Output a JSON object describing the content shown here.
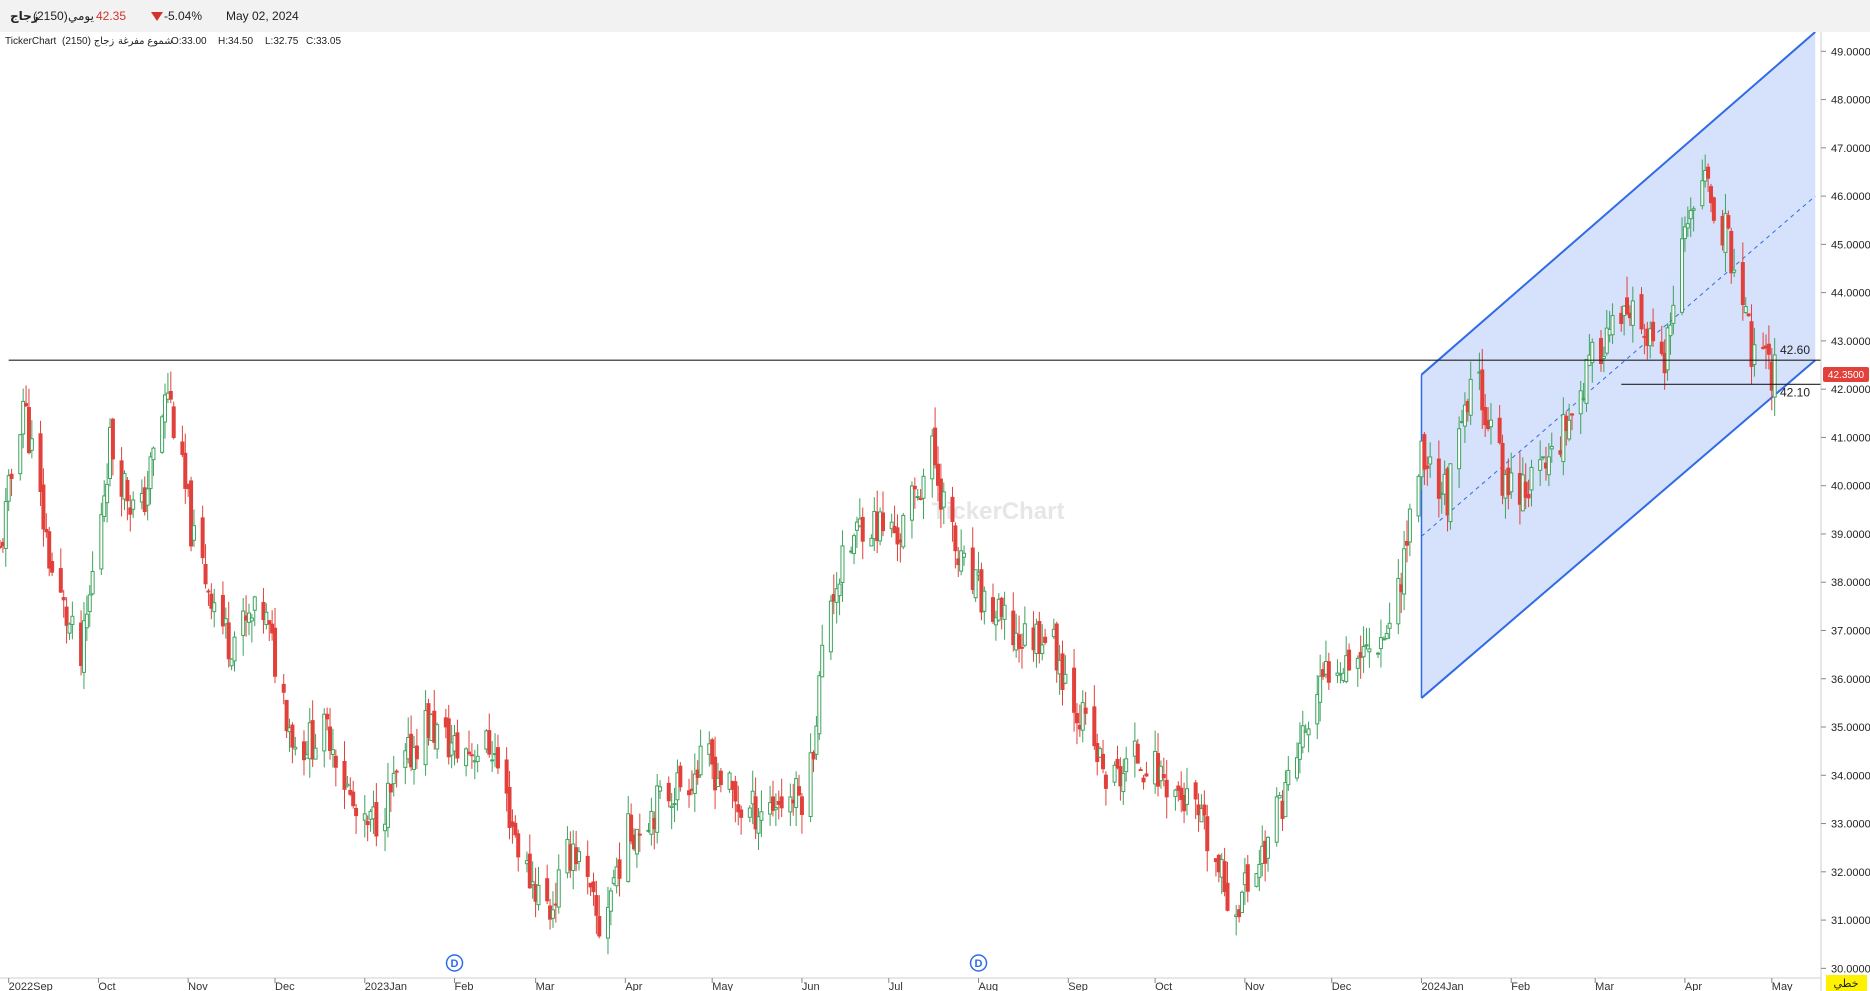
{
  "header": {
    "symbol_name": "زجاج",
    "symbol_code": "(2150)",
    "period": "يومي",
    "last_price": "42.35",
    "change_pct": "-5.04%",
    "date": "May 02, 2024"
  },
  "info_line": {
    "brand": "TickerChart",
    "symbol": "زجاج (2150)",
    "chart_type": "شموع مفرغة",
    "open": "O:33.00",
    "high": "H:34.50",
    "low": "L:32.75",
    "close": "C:33.05"
  },
  "watermark": "TickerChart",
  "colors": {
    "up": "#3da35d",
    "down": "#e2403a",
    "channel_line": "#2f6be6",
    "channel_fill": "#cfdcfb",
    "price_tag": "#e2403a",
    "mode_badge": "#fff200"
  },
  "mode_badge": "خطي",
  "price_tag": "42.3500",
  "markers": [
    {
      "label": "D",
      "x": "2023-02-01"
    },
    {
      "label": "D",
      "x": "2023-08-01"
    }
  ],
  "chart_data": {
    "type": "candlestick",
    "title": "",
    "ylim": [
      29.8,
      49.4
    ],
    "y_ticks": [
      "30.0000",
      "31.0000",
      "32.0000",
      "33.0000",
      "34.0000",
      "35.0000",
      "36.0000",
      "37.0000",
      "38.0000",
      "39.0000",
      "40.0000",
      "41.0000",
      "42.0000",
      "43.0000",
      "44.0000",
      "45.0000",
      "46.0000",
      "47.0000",
      "48.0000",
      "49.0000"
    ],
    "x_ticks": [
      {
        "label": "2022Sep",
        "date": "2022-08-31"
      },
      {
        "label": "Oct",
        "date": "2022-10-01"
      },
      {
        "label": "Nov",
        "date": "2022-11-01"
      },
      {
        "label": "Dec",
        "date": "2022-12-01"
      },
      {
        "label": "2023Jan",
        "date": "2023-01-01"
      },
      {
        "label": "Feb",
        "date": "2023-02-01"
      },
      {
        "label": "Mar",
        "date": "2023-03-01"
      },
      {
        "label": "Apr",
        "date": "2023-04-01"
      },
      {
        "label": "May",
        "date": "2023-05-01"
      },
      {
        "label": "Jun",
        "date": "2023-06-01"
      },
      {
        "label": "Jul",
        "date": "2023-07-01"
      },
      {
        "label": "Aug",
        "date": "2023-08-01"
      },
      {
        "label": "Sep",
        "date": "2023-09-01"
      },
      {
        "label": "Oct",
        "date": "2023-10-01"
      },
      {
        "label": "Nov",
        "date": "2023-11-01"
      },
      {
        "label": "Dec",
        "date": "2023-12-01"
      },
      {
        "label": "2024Jan",
        "date": "2024-01-01"
      },
      {
        "label": "Feb",
        "date": "2024-02-01"
      },
      {
        "label": "Mar",
        "date": "2024-03-01"
      },
      {
        "label": "Apr",
        "date": "2024-04-01"
      },
      {
        "label": "May",
        "date": "2024-05-01"
      }
    ],
    "x_range": [
      "2022-08-28",
      "2024-05-18"
    ],
    "closes": [
      {
        "date": "2022-08-28",
        "close": 38.6
      },
      {
        "date": "2022-09-05",
        "close": 41.8
      },
      {
        "date": "2022-09-15",
        "close": 38.2
      },
      {
        "date": "2022-09-25",
        "close": 36.3
      },
      {
        "date": "2022-10-05",
        "close": 40.9
      },
      {
        "date": "2022-10-15",
        "close": 39.2
      },
      {
        "date": "2022-10-25",
        "close": 42.0
      },
      {
        "date": "2022-11-03",
        "close": 38.8
      },
      {
        "date": "2022-11-15",
        "close": 36.8
      },
      {
        "date": "2022-11-27",
        "close": 37.4
      },
      {
        "date": "2022-12-08",
        "close": 34.6
      },
      {
        "date": "2022-12-20",
        "close": 34.9
      },
      {
        "date": "2022-12-31",
        "close": 32.7
      },
      {
        "date": "2023-01-10",
        "close": 33.6
      },
      {
        "date": "2023-01-22",
        "close": 35.1
      },
      {
        "date": "2023-02-02",
        "close": 34.5
      },
      {
        "date": "2023-02-14",
        "close": 34.6
      },
      {
        "date": "2023-02-25",
        "close": 32.1
      },
      {
        "date": "2023-03-06",
        "close": 31.2
      },
      {
        "date": "2023-03-14",
        "close": 32.6
      },
      {
        "date": "2023-03-23",
        "close": 30.8
      },
      {
        "date": "2023-04-01",
        "close": 32.7
      },
      {
        "date": "2023-04-15",
        "close": 33.6
      },
      {
        "date": "2023-04-30",
        "close": 34.3
      },
      {
        "date": "2023-05-12",
        "close": 33.2
      },
      {
        "date": "2023-05-25",
        "close": 33.5
      },
      {
        "date": "2023-06-03",
        "close": 33.6
      },
      {
        "date": "2023-06-10",
        "close": 37.6
      },
      {
        "date": "2023-06-22",
        "close": 39.3
      },
      {
        "date": "2023-07-05",
        "close": 39.0
      },
      {
        "date": "2023-07-16",
        "close": 40.7
      },
      {
        "date": "2023-07-25",
        "close": 38.4
      },
      {
        "date": "2023-08-05",
        "close": 37.4
      },
      {
        "date": "2023-08-15",
        "close": 36.8
      },
      {
        "date": "2023-08-25",
        "close": 37.0
      },
      {
        "date": "2023-09-05",
        "close": 35.3
      },
      {
        "date": "2023-09-15",
        "close": 33.8
      },
      {
        "date": "2023-09-25",
        "close": 34.4
      },
      {
        "date": "2023-10-05",
        "close": 33.9
      },
      {
        "date": "2023-10-15",
        "close": 33.2
      },
      {
        "date": "2023-10-28",
        "close": 31.2
      },
      {
        "date": "2023-11-08",
        "close": 32.5
      },
      {
        "date": "2023-11-20",
        "close": 34.6
      },
      {
        "date": "2023-12-01",
        "close": 36.4
      },
      {
        "date": "2023-12-12",
        "close": 36.6
      },
      {
        "date": "2023-12-22",
        "close": 37.2
      },
      {
        "date": "2024-01-01",
        "close": 40.7
      },
      {
        "date": "2024-01-10",
        "close": 39.8
      },
      {
        "date": "2024-01-20",
        "close": 42.4
      },
      {
        "date": "2024-01-30",
        "close": 40.0
      },
      {
        "date": "2024-02-10",
        "close": 40.1
      },
      {
        "date": "2024-02-22",
        "close": 41.6
      },
      {
        "date": "2024-03-05",
        "close": 43.2
      },
      {
        "date": "2024-03-15",
        "close": 43.4
      },
      {
        "date": "2024-03-25",
        "close": 42.5
      },
      {
        "date": "2024-04-05",
        "close": 46.5
      },
      {
        "date": "2024-04-15",
        "close": 45.3
      },
      {
        "date": "2024-04-25",
        "close": 42.6
      },
      {
        "date": "2024-05-02",
        "close": 42.35
      }
    ],
    "horizontal_lines": [
      {
        "value": 42.6,
        "label": "42.60",
        "from": "2022-08-31",
        "to": "2024-05-18"
      },
      {
        "value": 42.1,
        "label": "42.10",
        "from": "2024-03-10",
        "to": "2024-05-18"
      }
    ],
    "channel": {
      "upper": [
        {
          "date": "2024-01-01",
          "value": 42.3
        },
        {
          "date": "2024-05-16",
          "value": 49.4
        }
      ],
      "lower": [
        {
          "date": "2024-01-01",
          "value": 35.6
        },
        {
          "date": "2024-05-16",
          "value": 42.6
        }
      ],
      "mid": [
        {
          "date": "2024-01-01",
          "value": 38.95
        },
        {
          "date": "2024-05-16",
          "value": 46.0
        }
      ]
    }
  }
}
